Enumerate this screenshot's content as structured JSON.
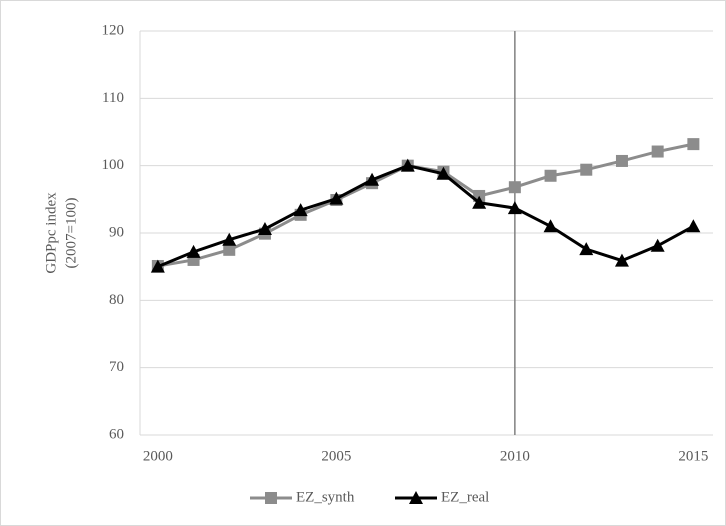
{
  "chart_data": {
    "type": "line",
    "y_label": [
      "GDPpc index",
      "(2007=100)"
    ],
    "x": [
      2000,
      2001,
      2002,
      2003,
      2004,
      2005,
      2006,
      2007,
      2008,
      2009,
      2010,
      2011,
      2012,
      2013,
      2014,
      2015
    ],
    "series": [
      {
        "name": "EZ_synth",
        "color": "#8c8c8c",
        "marker": "square",
        "values": [
          85.1,
          86.0,
          87.5,
          89.9,
          92.7,
          94.9,
          97.4,
          100,
          99.1,
          95.5,
          96.8,
          98.5,
          99.4,
          100.7,
          102.1,
          103.2
        ]
      },
      {
        "name": "EZ_real",
        "color": "#000000",
        "marker": "triangle",
        "values": [
          85.0,
          87.2,
          89.0,
          90.6,
          93.4,
          95.1,
          97.9,
          100,
          98.8,
          94.5,
          93.7,
          91.0,
          87.6,
          85.9,
          88.1,
          91.0
        ]
      }
    ],
    "xlim": [
      1999.5,
      2015.55
    ],
    "xticks": [
      2000,
      2005,
      2010,
      2015
    ],
    "ylim": [
      60,
      120
    ],
    "yticks": [
      60,
      70,
      80,
      90,
      100,
      110,
      120
    ],
    "grid": true,
    "vline": 2010,
    "legend": "bottom"
  }
}
